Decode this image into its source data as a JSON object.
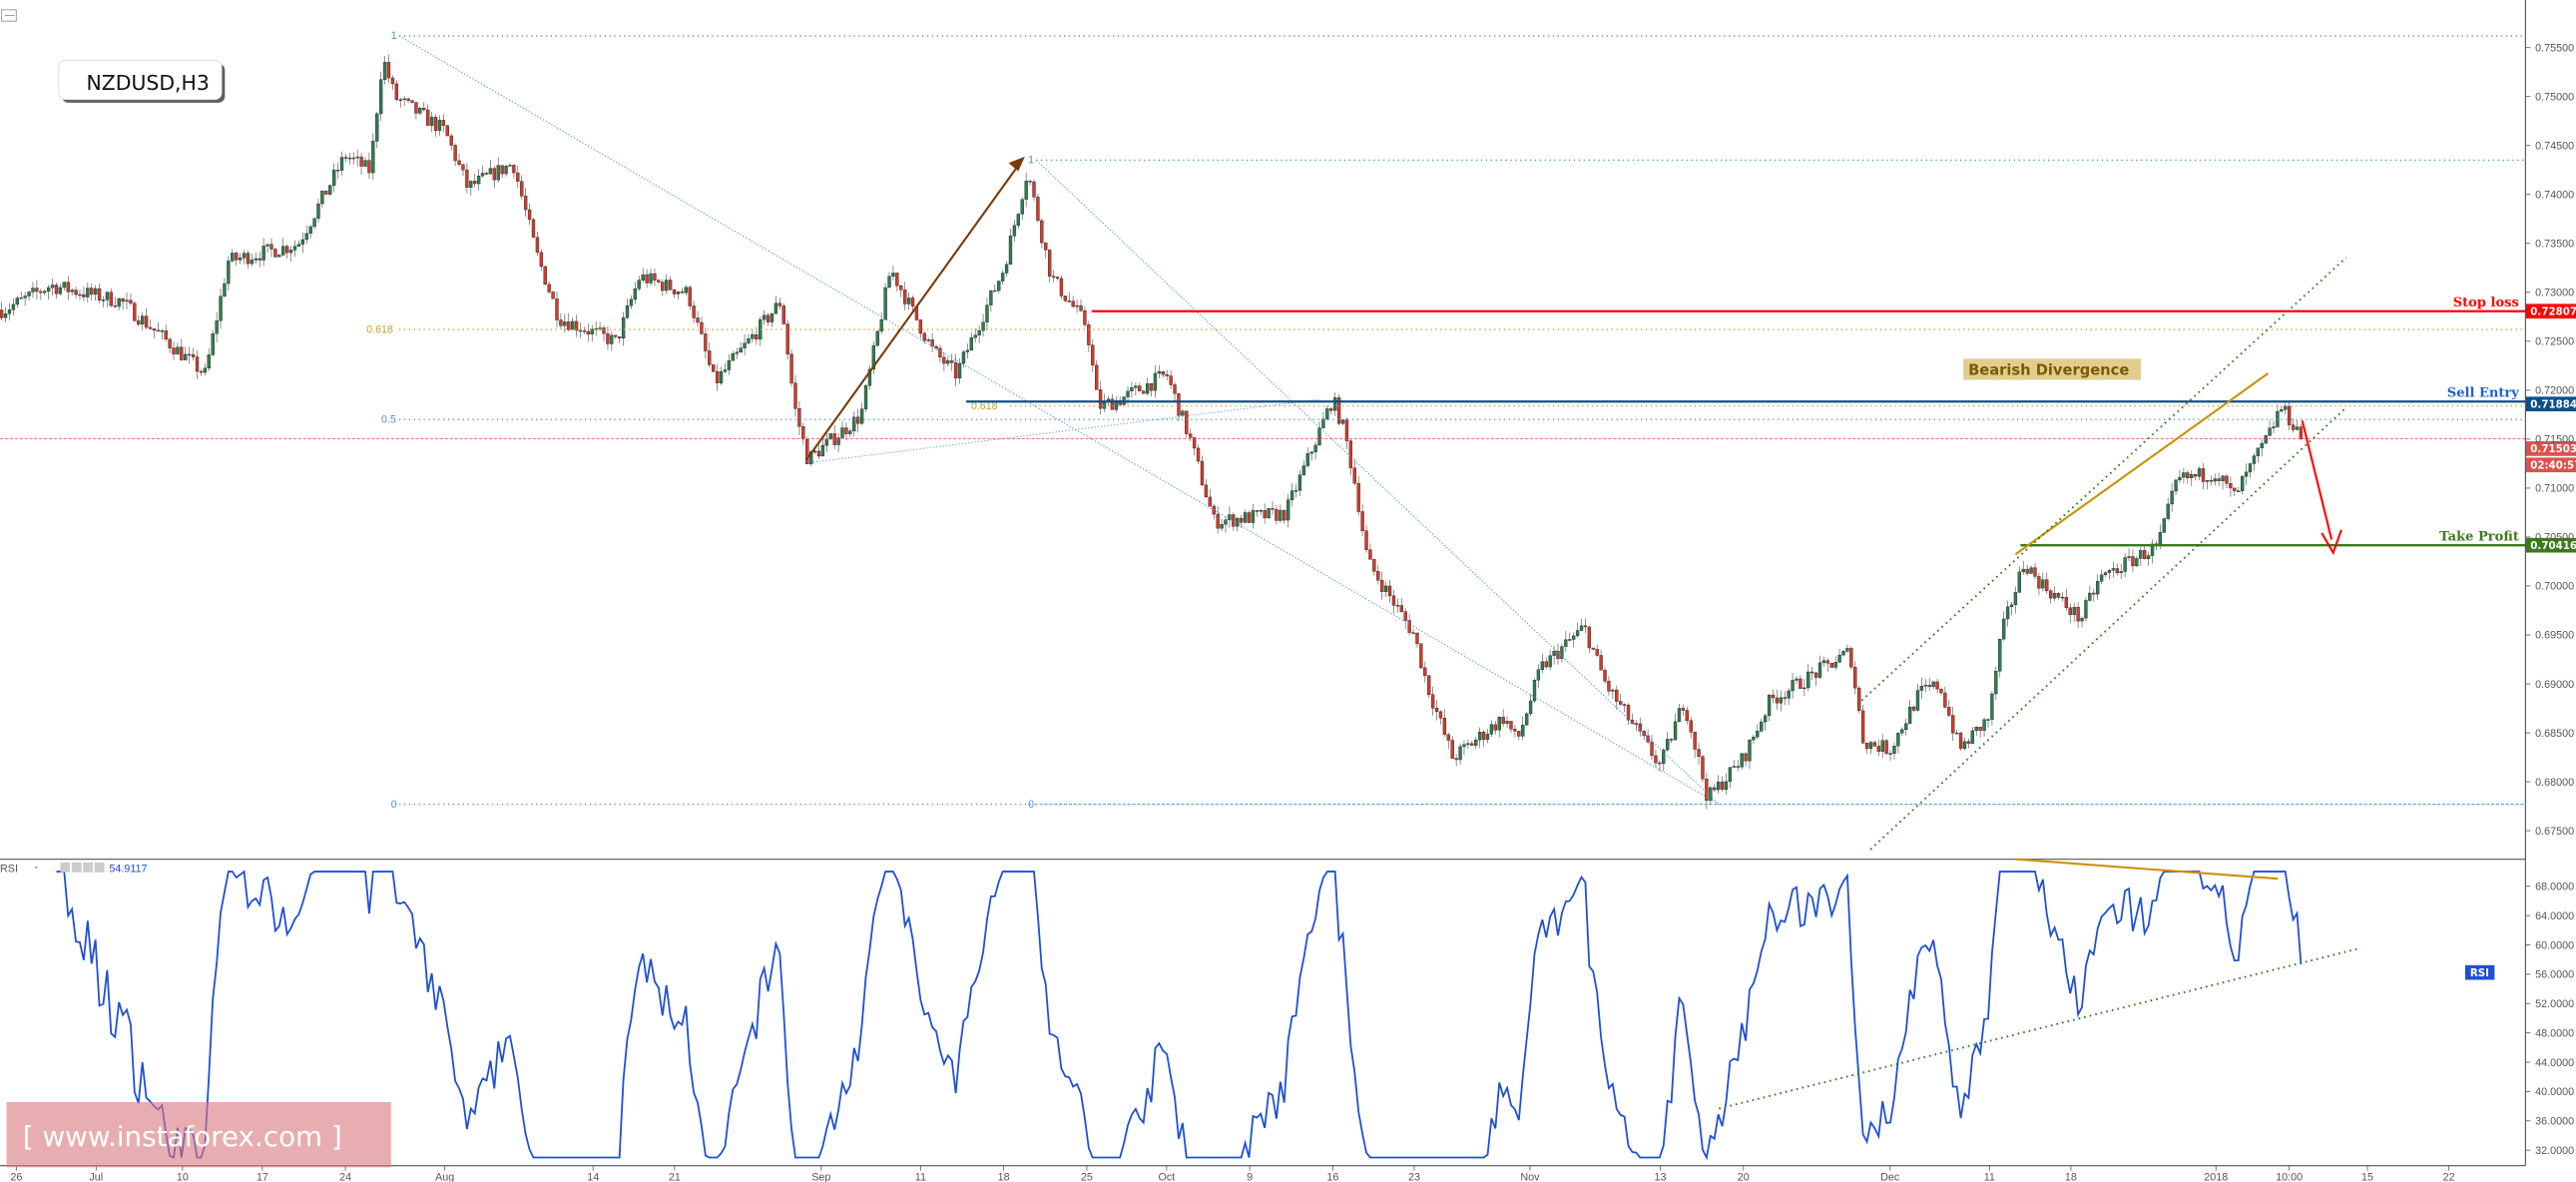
{
  "symbol_label": "NZDUSD,H3",
  "watermark": "[ www.instaforex.com ]",
  "rsi_legend": {
    "name": "RSI",
    "value": "54.9117",
    "badge": "RSI"
  },
  "annotations": {
    "stop_loss": {
      "label": "Stop loss",
      "price": 0.72807,
      "price_label": "0.72807",
      "color": "#ff0000"
    },
    "sell_entry": {
      "label": "Sell Entry",
      "price": 0.71884,
      "price_label": "0.71884",
      "color": "#0d4f8b"
    },
    "take_profit": {
      "label": "Take Profit",
      "price": 0.70416,
      "price_label": "0.70416",
      "color": "#3a7a1f"
    },
    "current_price": {
      "price": 0.71503,
      "price_label": "0.71503",
      "countdown": "02:40:57",
      "color": "#d9534f"
    },
    "bearish_divergence": "Bearish Divergence"
  },
  "fib_1": {
    "levels": [
      {
        "ratio": "1",
        "price": 0.7562
      },
      {
        "ratio": "0.618",
        "price": 0.7262
      },
      {
        "ratio": "0.5",
        "price": 0.717
      },
      {
        "ratio": "0",
        "price": 0.6777
      }
    ]
  },
  "fib_2": {
    "levels": [
      {
        "ratio": "1",
        "price": 0.7435
      },
      {
        "ratio": "0.618",
        "price": 0.7184
      },
      {
        "ratio": "0",
        "price": 0.6777
      }
    ]
  },
  "chart_data": [
    {
      "type": "candlestick",
      "title": "NZDUSD,H3",
      "price_axis": {
        "ticks": [
          "0.67500",
          "0.68000",
          "0.68500",
          "0.69000",
          "0.69500",
          "0.70000",
          "0.70500",
          "0.71000",
          "0.71500",
          "0.72000",
          "0.72500",
          "0.73000",
          "0.73500",
          "0.74000",
          "0.74500",
          "0.75000",
          "0.75500"
        ],
        "ylim": [
          0.673,
          0.76
        ]
      },
      "time_axis": {
        "ticks": [
          "26",
          "Jul",
          "10",
          "17",
          "24",
          "Aug",
          "14",
          "21",
          "Sep",
          "11",
          "18",
          "25",
          "Oct",
          "9",
          "16",
          "23",
          "Nov",
          "13",
          "20",
          "Dec",
          "11",
          "18",
          "2018",
          "10:00",
          "15",
          "22"
        ]
      },
      "price_path": [
        {
          "t": "2017-06-23",
          "p": 0.7282
        },
        {
          "t": "2017-06-29",
          "p": 0.7307
        },
        {
          "t": "2017-07-05",
          "p": 0.7291
        },
        {
          "t": "2017-07-12",
          "p": 0.7216
        },
        {
          "t": "2017-07-14",
          "p": 0.7332
        },
        {
          "t": "2017-07-20",
          "p": 0.7349
        },
        {
          "t": "2017-07-24",
          "p": 0.744
        },
        {
          "t": "2017-07-26",
          "p": 0.7424
        },
        {
          "t": "2017-07-27",
          "p": 0.754
        },
        {
          "t": "2017-07-28",
          "p": 0.7499
        },
        {
          "t": "2017-08-01",
          "p": 0.7465
        },
        {
          "t": "2017-08-03",
          "p": 0.7407
        },
        {
          "t": "2017-08-07",
          "p": 0.7432
        },
        {
          "t": "2017-08-09",
          "p": 0.7341
        },
        {
          "t": "2017-08-11",
          "p": 0.7274
        },
        {
          "t": "2017-08-16",
          "p": 0.7249
        },
        {
          "t": "2017-08-18",
          "p": 0.7316
        },
        {
          "t": "2017-08-22",
          "p": 0.7299
        },
        {
          "t": "2017-08-24",
          "p": 0.7207
        },
        {
          "t": "2017-08-29",
          "p": 0.7291
        },
        {
          "t": "2017-08-30",
          "p": 0.7183
        },
        {
          "t": "2017-08-31",
          "p": 0.7129
        },
        {
          "t": "2017-09-05",
          "p": 0.7174
        },
        {
          "t": "2017-09-08",
          "p": 0.7324
        },
        {
          "t": "2017-09-12",
          "p": 0.7241
        },
        {
          "t": "2017-09-14",
          "p": 0.7216
        },
        {
          "t": "2017-09-18",
          "p": 0.7324
        },
        {
          "t": "2017-09-20",
          "p": 0.7424
        },
        {
          "t": "2017-09-22",
          "p": 0.7316
        },
        {
          "t": "2017-09-25",
          "p": 0.7266
        },
        {
          "t": "2017-09-26",
          "p": 0.7183
        },
        {
          "t": "2017-09-28",
          "p": 0.7191
        },
        {
          "t": "2017-10-02",
          "p": 0.7216
        },
        {
          "t": "2017-10-04",
          "p": 0.7149
        },
        {
          "t": "2017-10-06",
          "p": 0.7066
        },
        {
          "t": "2017-10-12",
          "p": 0.7074
        },
        {
          "t": "2017-10-16",
          "p": 0.7191
        },
        {
          "t": "2017-10-17",
          "p": 0.7158
        },
        {
          "t": "2017-10-18",
          "p": 0.7099
        },
        {
          "t": "2017-10-19",
          "p": 0.7025
        },
        {
          "t": "2017-10-23",
          "p": 0.695
        },
        {
          "t": "2017-10-24",
          "p": 0.6899
        },
        {
          "t": "2017-10-26",
          "p": 0.6824
        },
        {
          "t": "2017-10-30",
          "p": 0.6866
        },
        {
          "t": "2017-10-31",
          "p": 0.6841
        },
        {
          "t": "2017-11-02",
          "p": 0.6916
        },
        {
          "t": "2017-11-06",
          "p": 0.6958
        },
        {
          "t": "2017-11-08",
          "p": 0.6899
        },
        {
          "t": "2017-11-10",
          "p": 0.6866
        },
        {
          "t": "2017-11-13",
          "p": 0.6816
        },
        {
          "t": "2017-11-15",
          "p": 0.6883
        },
        {
          "t": "2017-11-17",
          "p": 0.6783
        },
        {
          "t": "2017-11-20",
          "p": 0.6824
        },
        {
          "t": "2017-11-22",
          "p": 0.6883
        },
        {
          "t": "2017-11-24",
          "p": 0.6899
        },
        {
          "t": "2017-11-28",
          "p": 0.6933
        },
        {
          "t": "2017-11-29",
          "p": 0.6841
        },
        {
          "t": "2017-12-01",
          "p": 0.6833
        },
        {
          "t": "2017-12-04",
          "p": 0.6891
        },
        {
          "t": "2017-12-06",
          "p": 0.6899
        },
        {
          "t": "2017-12-08",
          "p": 0.6833
        },
        {
          "t": "2017-12-11",
          "p": 0.6866
        },
        {
          "t": "2017-12-12",
          "p": 0.695
        },
        {
          "t": "2017-12-14",
          "p": 0.7025
        },
        {
          "t": "2017-12-15",
          "p": 0.7008
        },
        {
          "t": "2017-12-19",
          "p": 0.6966
        },
        {
          "t": "2017-12-21",
          "p": 0.7008
        },
        {
          "t": "2017-12-27",
          "p": 0.7041
        },
        {
          "t": "2017-12-29",
          "p": 0.7108
        },
        {
          "t": "2018-01-02",
          "p": 0.7116
        },
        {
          "t": "2018-01-04",
          "p": 0.7091
        },
        {
          "t": "2018-01-08",
          "p": 0.7158
        },
        {
          "t": "2018-01-09",
          "p": 0.7183
        },
        {
          "t": "2018-01-11",
          "p": 0.71503
        }
      ],
      "colors": {
        "up": "#2e7d4f",
        "down": "#d33a2c",
        "wick": "#555555"
      }
    },
    {
      "type": "line",
      "title": "RSI",
      "last_value": 54.9117,
      "yaxis": {
        "ticks": [
          "32.0000",
          "36.0000",
          "40.0000",
          "44.0000",
          "48.0000",
          "52.0000",
          "56.0000",
          "60.0000",
          "64.0000",
          "68.0000"
        ],
        "ylim": [
          30,
          71
        ]
      },
      "color": "#1f4fd6"
    }
  ]
}
